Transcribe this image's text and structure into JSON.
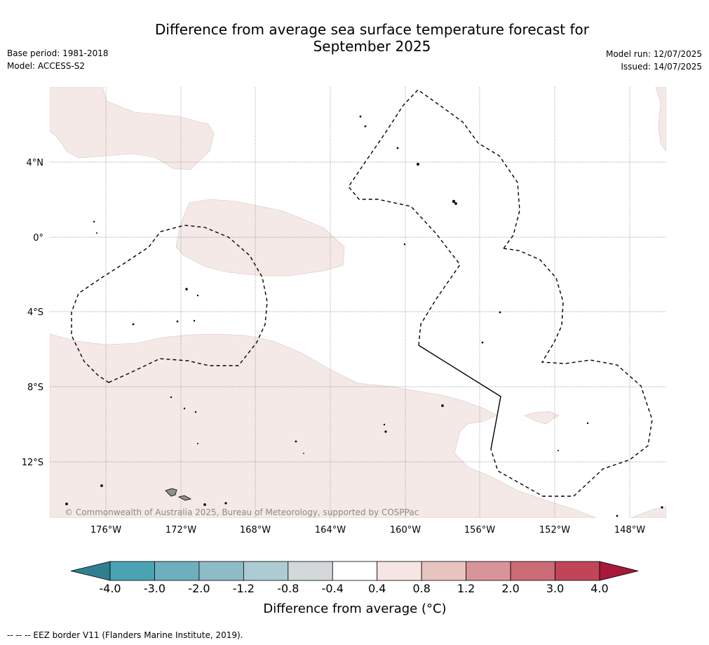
{
  "title_line1": "Difference from average sea surface temperature forecast for",
  "title_line2": "September 2025",
  "meta_left": {
    "base_period": "Base period: 1981-2018",
    "model": "Model: ACCESS-S2"
  },
  "meta_right": {
    "model_run": "Model run: 12/07/2025",
    "issued": "Issued: 14/07/2025"
  },
  "copyright": "© Commonwealth of Australia 2025, Bureau of Meteorology, supported by COSPPac",
  "lat_labels": [
    "4°N",
    "0°",
    "4°S",
    "8°S",
    "12°S"
  ],
  "lon_labels": [
    "176°W",
    "172°W",
    "168°W",
    "164°W",
    "160°W",
    "156°W",
    "152°W",
    "148°W"
  ],
  "colorbar": {
    "ticks": [
      "-4.0",
      "-3.0",
      "-2.0",
      "-1.2",
      "-0.8",
      "-0.4",
      "0.4",
      "0.8",
      "1.2",
      "2.0",
      "3.0",
      "4.0"
    ],
    "colors": [
      "#2f7f8f",
      "#4aa3b3",
      "#6eafbd",
      "#8fbbc6",
      "#adcbd2",
      "#d3d8da",
      "#ffffff",
      "#f5e6e4",
      "#e8c4c1",
      "#d9949a",
      "#cb6b75",
      "#c04657",
      "#a8183a"
    ],
    "title": "Difference from average (°C)"
  },
  "footnote": "--  --  -- EEZ border V11 (Flanders Marine Institute, 2019)."
}
